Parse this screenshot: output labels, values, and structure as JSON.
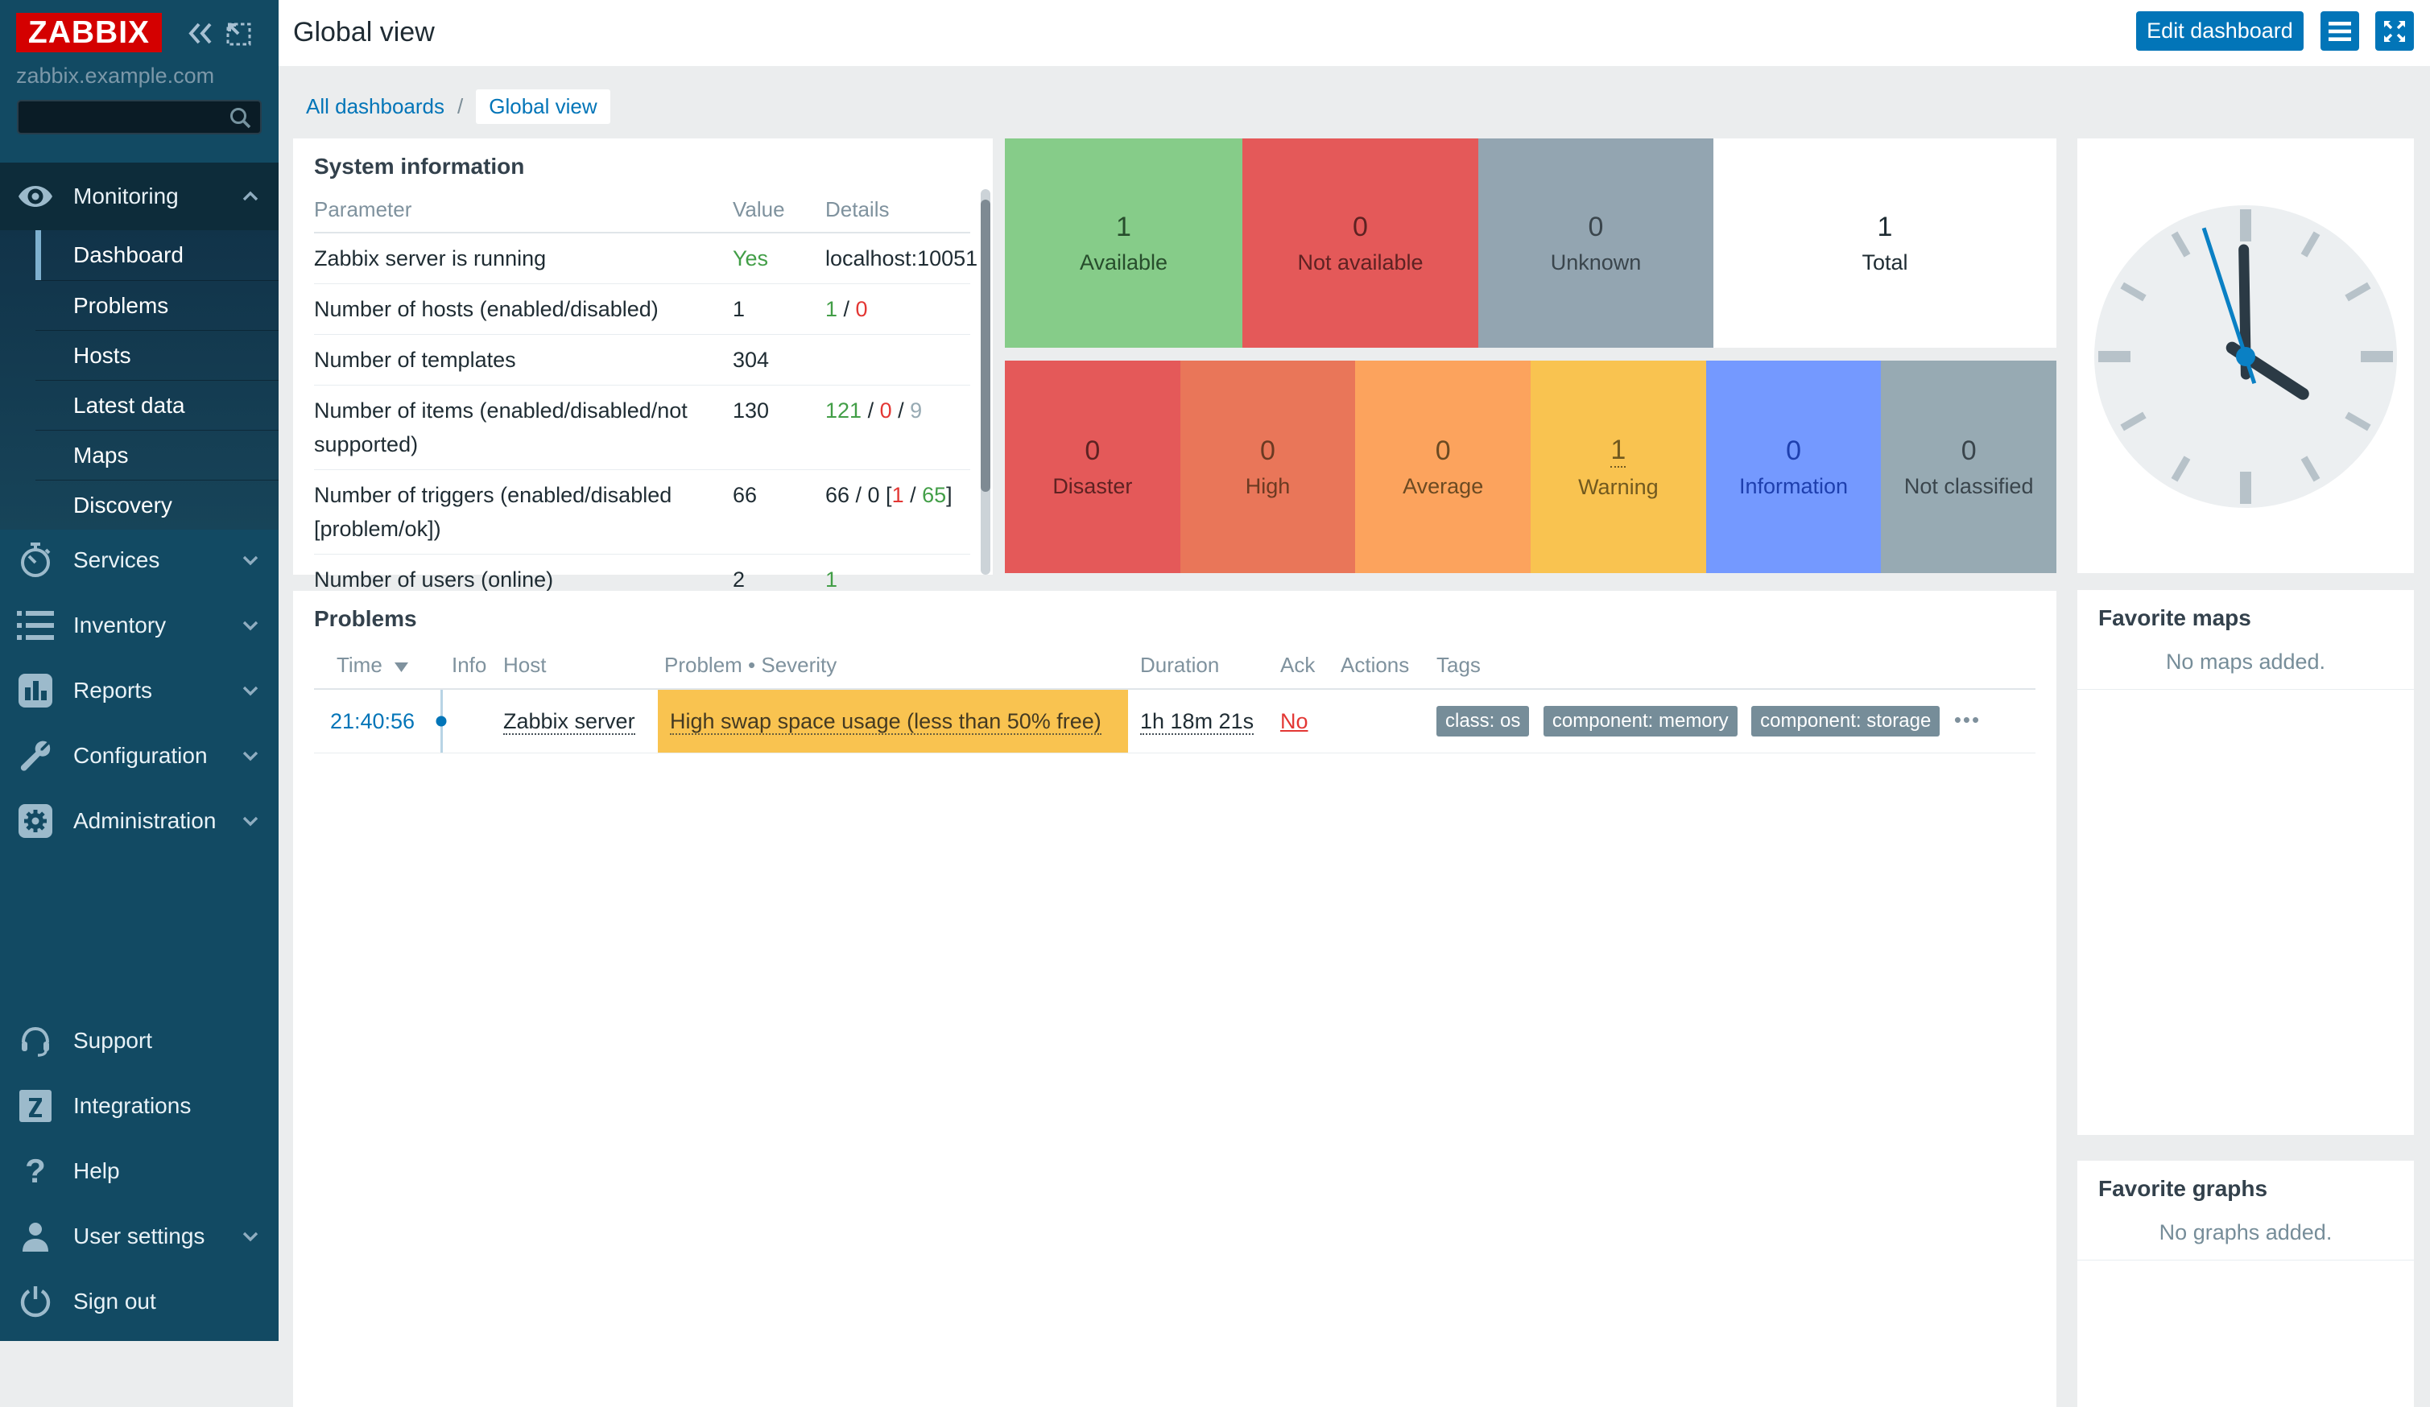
{
  "app": {
    "logo_text": "ZABBIX",
    "server_name": "zabbix.example.com"
  },
  "sidebar": {
    "search": {
      "placeholder": "",
      "value": ""
    },
    "menu": [
      {
        "label": "Monitoring",
        "icon": "eye",
        "expanded": true,
        "items": [
          {
            "label": "Dashboard",
            "selected": true
          },
          {
            "label": "Problems"
          },
          {
            "label": "Hosts"
          },
          {
            "label": "Latest data"
          },
          {
            "label": "Maps"
          },
          {
            "label": "Discovery"
          }
        ]
      },
      {
        "label": "Services",
        "icon": "stopwatch"
      },
      {
        "label": "Inventory",
        "icon": "list"
      },
      {
        "label": "Reports",
        "icon": "bar-chart"
      },
      {
        "label": "Configuration",
        "icon": "wrench"
      },
      {
        "label": "Administration",
        "icon": "gear"
      }
    ],
    "footer_menu": [
      {
        "label": "Support",
        "icon": "headset"
      },
      {
        "label": "Integrations",
        "icon": "z-square"
      },
      {
        "label": "Help",
        "icon": "question"
      },
      {
        "label": "User settings",
        "icon": "user",
        "has_chevron": true
      },
      {
        "label": "Sign out",
        "icon": "power"
      }
    ]
  },
  "header": {
    "title": "Global view",
    "edit_button_label": "Edit dashboard"
  },
  "breadcrumb": {
    "parent": "All dashboards",
    "separator": "/",
    "current": "Global view"
  },
  "system_information": {
    "title": "System information",
    "columns": [
      "Parameter",
      "Value",
      "Details"
    ],
    "rows": [
      {
        "parameter": "Zabbix server is running",
        "value": "Yes",
        "value_class": "t-green",
        "details": [
          {
            "text": "localhost:10051",
            "class": ""
          }
        ]
      },
      {
        "parameter": "Number of hosts (enabled/disabled)",
        "value": "1",
        "value_class": "",
        "details": [
          {
            "text": "1",
            "class": "t-green"
          },
          {
            "text": " / ",
            "class": ""
          },
          {
            "text": "0",
            "class": "t-red"
          }
        ]
      },
      {
        "parameter": "Number of templates",
        "value": "304",
        "value_class": "",
        "details": []
      },
      {
        "parameter": "Number of items (enabled/disabled/not supported)",
        "value": "130",
        "value_class": "",
        "details": [
          {
            "text": "121",
            "class": "t-green"
          },
          {
            "text": " / ",
            "class": ""
          },
          {
            "text": "0",
            "class": "t-red"
          },
          {
            "text": " / ",
            "class": ""
          },
          {
            "text": "9",
            "class": "t-gray"
          }
        ]
      },
      {
        "parameter": "Number of triggers (enabled/disabled [problem/ok])",
        "value": "66",
        "value_class": "",
        "details": [
          {
            "text": "66 / 0 [",
            "class": ""
          },
          {
            "text": "1",
            "class": "t-red"
          },
          {
            "text": " / ",
            "class": ""
          },
          {
            "text": "65",
            "class": "t-green"
          },
          {
            "text": "]",
            "class": ""
          }
        ]
      },
      {
        "parameter": "Number of users (online)",
        "value": "2",
        "value_class": "",
        "details": [
          {
            "text": "1",
            "class": "t-green"
          }
        ]
      }
    ]
  },
  "chart_data": [
    {
      "type": "bar",
      "title": "Host availability",
      "categories": [
        "Available",
        "Not available",
        "Unknown",
        "Total"
      ],
      "values": [
        1,
        0,
        0,
        1
      ],
      "colors": [
        "#86cc89",
        "#e45959",
        "#93a5b1",
        "#ffffff"
      ],
      "text_colors": [
        "#274d2c",
        "#5e2222",
        "#3a454c",
        "#1f2c33"
      ]
    },
    {
      "type": "bar",
      "title": "Problems by severity",
      "categories": [
        "Disaster",
        "High",
        "Average",
        "Warning",
        "Information",
        "Not classified"
      ],
      "values": [
        0,
        0,
        0,
        1,
        0,
        0
      ],
      "colors": [
        "#e45959",
        "#e97659",
        "#fca35d",
        "#f9c350",
        "#7499ff",
        "#97aab3"
      ],
      "text_colors": [
        "#5e2222",
        "#6b3a22",
        "#6b4a22",
        "#71591f",
        "#1e3fae",
        "#3a454c"
      ]
    }
  ],
  "host_availability": {
    "blocks": [
      {
        "value": "1",
        "label": "Available",
        "bg": "#86cc89",
        "fg": "#274d2c"
      },
      {
        "value": "0",
        "label": "Not available",
        "bg": "#e45959",
        "fg": "#5e2222"
      },
      {
        "value": "0",
        "label": "Unknown",
        "bg": "#93a5b1",
        "fg": "#3a454c"
      },
      {
        "value": "1",
        "label": "Total",
        "bg": "#ffffff",
        "fg": "#1f2c33"
      }
    ]
  },
  "problems_by_severity": {
    "blocks": [
      {
        "value": "0",
        "label": "Disaster",
        "bg": "#e45959",
        "fg": "#5e2222",
        "link": false
      },
      {
        "value": "0",
        "label": "High",
        "bg": "#e97659",
        "fg": "#6b3a22",
        "link": false
      },
      {
        "value": "0",
        "label": "Average",
        "bg": "#fca35d",
        "fg": "#6b4a22",
        "link": false
      },
      {
        "value": "1",
        "label": "Warning",
        "bg": "#f9c350",
        "fg": "#71591f",
        "link": true
      },
      {
        "value": "0",
        "label": "Information",
        "bg": "#7499ff",
        "fg": "#1e3fae",
        "link": false
      },
      {
        "value": "0",
        "label": "Not classified",
        "bg": "#97aab3",
        "fg": "#3a454c",
        "link": false
      }
    ]
  },
  "clock": {
    "hour_angle": 123,
    "minute_angle": -1,
    "second_angle": -18
  },
  "problems": {
    "title": "Problems",
    "columns": [
      "Time",
      "Info",
      "Host",
      "Problem • Severity",
      "Duration",
      "Ack",
      "Actions",
      "Tags"
    ],
    "sorted_by": "Time",
    "rows": [
      {
        "time": "21:40:56",
        "host": "Zabbix server",
        "problem": "High swap space usage (less than 50% free)",
        "severity": "Warning",
        "severity_color": "#f9c350",
        "duration": "1h 18m 21s",
        "ack": "No",
        "tags": [
          "class: os",
          "component: memory",
          "component: storage"
        ],
        "more_tags": "•••"
      }
    ]
  },
  "favorites": {
    "maps": {
      "title": "Favorite maps",
      "empty_message": "No maps added."
    },
    "graphs": {
      "title": "Favorite graphs",
      "empty_message": "No graphs added."
    }
  },
  "colors": {
    "sidebar_bg": "#124a63",
    "sidebar_section_bg": "#0d2c3a",
    "sidebar_selected_bar": "#7eb0cf",
    "accent_blue": "#0275b8",
    "logo_red": "#d40000",
    "page_bg": "#ebedee",
    "link_blue": "#0275b8",
    "green_text": "#429e47",
    "red_text": "#e33734",
    "gray_text": "#97aab3"
  }
}
